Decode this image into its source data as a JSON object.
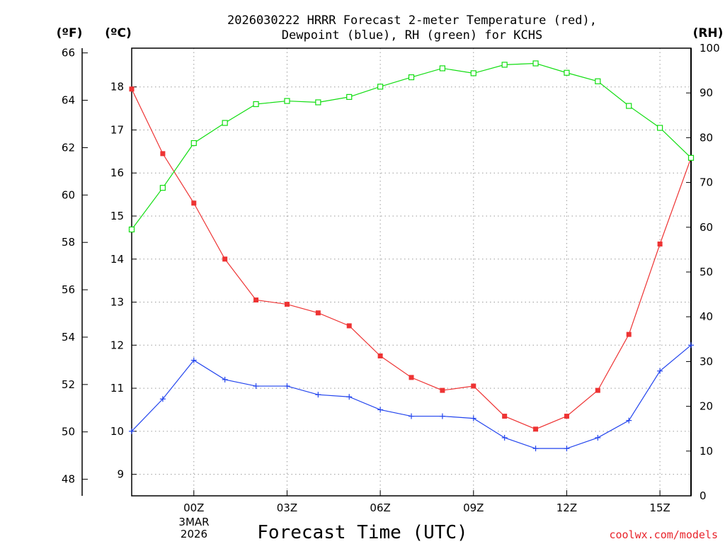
{
  "chart_data": {
    "type": "line",
    "title_line1": "2026030222 HRRR Forecast 2-meter Temperature (red),",
    "title_line2": "Dewpoint (blue), RH (green) for KCHS",
    "xlabel": "Forecast Time (UTC)",
    "x_tick_labels": [
      "00Z",
      "03Z",
      "06Z",
      "09Z",
      "12Z",
      "15Z"
    ],
    "x_tick_hours": [
      2,
      5,
      8,
      11,
      14,
      17
    ],
    "date_label_lines": [
      "3MAR",
      "2026"
    ],
    "xlim": [
      0,
      18
    ],
    "x_hours": [
      0,
      1,
      2,
      3,
      4,
      5,
      6,
      7,
      8,
      9,
      10,
      11,
      12,
      13,
      14,
      15,
      16,
      17,
      18
    ],
    "axes": {
      "fahrenheit": {
        "label": "(ºF)",
        "ticks": [
          48,
          50,
          52,
          54,
          56,
          58,
          60,
          62,
          64,
          66
        ],
        "range": [
          47.3,
          66.2
        ]
      },
      "celsius": {
        "label": "(ºC)",
        "ticks": [
          9,
          10,
          11,
          12,
          13,
          14,
          15,
          16,
          17,
          18
        ],
        "range": [
          8.5,
          18.9
        ]
      },
      "rh": {
        "label": "(RH)",
        "ticks": [
          0,
          10,
          20,
          30,
          40,
          50,
          60,
          70,
          80,
          90,
          100
        ],
        "range": [
          0,
          100
        ]
      }
    },
    "series": [
      {
        "name": "2-meter Temperature",
        "units": "°C",
        "color": "#ee3333",
        "marker": "filled-square",
        "values": [
          17.95,
          16.45,
          15.3,
          14.0,
          13.05,
          12.95,
          12.75,
          12.45,
          11.75,
          11.25,
          10.95,
          11.05,
          10.35,
          10.05,
          10.35,
          10.95,
          12.25,
          14.35,
          16.35
        ]
      },
      {
        "name": "Dewpoint",
        "units": "°C",
        "color": "#2244ee",
        "marker": "plus",
        "values": [
          10.0,
          10.75,
          11.65,
          11.2,
          11.05,
          11.05,
          10.85,
          10.8,
          10.5,
          10.35,
          10.35,
          10.3,
          9.85,
          9.6,
          9.6,
          9.85,
          10.25,
          11.4,
          12.0
        ]
      },
      {
        "name": "RH",
        "units": "%",
        "color": "#11dd11",
        "marker": "open-square",
        "values": [
          59.5,
          68.8,
          78.8,
          83.3,
          87.5,
          88.2,
          87.9,
          89.1,
          91.4,
          93.5,
          95.5,
          94.4,
          96.3,
          96.6,
          94.5,
          92.6,
          87.1,
          82.2,
          75.5
        ]
      }
    ],
    "grid": true
  },
  "credit": "coolwx.com/models"
}
